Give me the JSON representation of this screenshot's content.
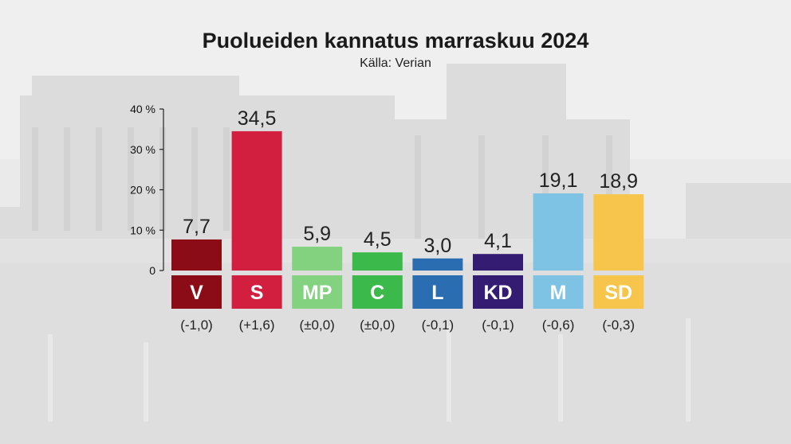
{
  "chart_data": {
    "type": "bar",
    "title": "Puolueiden kannatus marraskuu 2024",
    "subtitle": "Källa: Verian",
    "ylim": [
      0,
      40
    ],
    "yticks": [
      "0",
      "10 %",
      "20 %",
      "30 %",
      "40 %"
    ],
    "categories": [
      "V",
      "S",
      "MP",
      "C",
      "L",
      "KD",
      "M",
      "SD"
    ],
    "values": [
      7.7,
      34.5,
      5.9,
      4.5,
      3.0,
      4.1,
      19.1,
      18.9
    ],
    "value_labels": [
      "7,7",
      "34,5",
      "5,9",
      "4,5",
      "3,0",
      "4,1",
      "19,1",
      "18,9"
    ],
    "changes": [
      "(-1,0)",
      "(+1,6)",
      "(±0,0)",
      "(±0,0)",
      "(-0,1)",
      "(-0,1)",
      "(-0,6)",
      "(-0,3)"
    ],
    "colors": [
      "#8b0b16",
      "#d21f40",
      "#82d27f",
      "#3bb94a",
      "#2a6db0",
      "#341c73",
      "#7ec3e4",
      "#f7c54b"
    ],
    "grid": false,
    "legend": "none"
  }
}
